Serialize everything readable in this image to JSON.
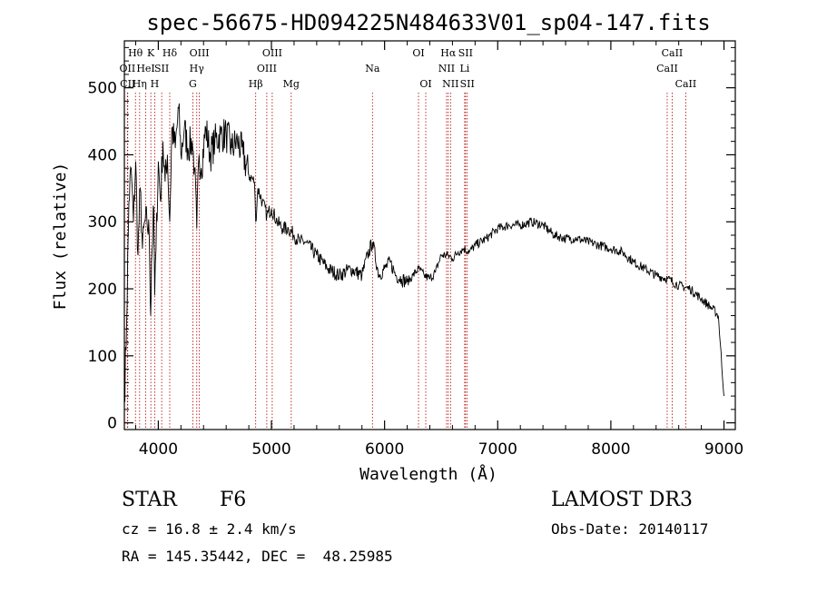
{
  "chart_data": {
    "type": "line",
    "title": "spec-56675-HD094225N484633V01_sp04-147.fits",
    "xlabel": "Wavelength (Å)",
    "ylabel": "Flux (relative)",
    "xlim": [
      3700,
      9100
    ],
    "ylim": [
      -10,
      570
    ],
    "xticks": [
      4000,
      5000,
      6000,
      7000,
      8000,
      9000
    ],
    "yticks": [
      0,
      100,
      200,
      300,
      400,
      500
    ],
    "grid": false,
    "series": [
      {
        "name": "flux",
        "x": [
          3700,
          3720,
          3740,
          3760,
          3780,
          3800,
          3820,
          3840,
          3860,
          3880,
          3900,
          3920,
          3933,
          3940,
          3960,
          3968,
          3980,
          4000,
          4020,
          4040,
          4060,
          4080,
          4101,
          4120,
          4150,
          4180,
          4200,
          4230,
          4260,
          4300,
          4320,
          4340,
          4360,
          4380,
          4420,
          4460,
          4500,
          4550,
          4600,
          4650,
          4700,
          4750,
          4800,
          4850,
          4861,
          4880,
          4920,
          4960,
          5000,
          5050,
          5100,
          5150,
          5200,
          5250,
          5300,
          5400,
          5500,
          5600,
          5700,
          5800,
          5850,
          5893,
          5950,
          6000,
          6050,
          6100,
          6150,
          6200,
          6250,
          6300,
          6350,
          6400,
          6450,
          6500,
          6563,
          6600,
          6650,
          6700,
          6750,
          6800,
          6900,
          7000,
          7100,
          7200,
          7300,
          7400,
          7500,
          7600,
          7700,
          7800,
          7900,
          8000,
          8100,
          8200,
          8300,
          8400,
          8500,
          8600,
          8700,
          8800,
          8900,
          8950,
          9000
        ],
        "values": [
          30,
          150,
          330,
          380,
          300,
          390,
          250,
          350,
          260,
          300,
          300,
          280,
          160,
          240,
          320,
          190,
          260,
          390,
          330,
          420,
          360,
          400,
          300,
          440,
          410,
          470,
          400,
          440,
          410,
          420,
          380,
          290,
          400,
          380,
          440,
          400,
          420,
          430,
          430,
          410,
          420,
          400,
          370,
          360,
          300,
          350,
          330,
          310,
          320,
          300,
          290,
          290,
          280,
          270,
          270,
          250,
          230,
          220,
          230,
          220,
          250,
          270,
          220,
          230,
          240,
          220,
          215,
          210,
          220,
          230,
          220,
          215,
          225,
          250,
          250,
          245,
          255,
          260,
          255,
          265,
          275,
          290,
          295,
          295,
          300,
          295,
          280,
          275,
          275,
          270,
          265,
          260,
          255,
          240,
          230,
          220,
          215,
          205,
          200,
          185,
          170,
          160,
          40
        ]
      }
    ],
    "lines": [
      {
        "label": "Hθ",
        "x": 3798,
        "row": 1
      },
      {
        "label": "OII",
        "x": 3727,
        "row": 2
      },
      {
        "label": "CII",
        "x": 3730,
        "row": 3
      },
      {
        "label": "Hη",
        "x": 3835,
        "row": 3
      },
      {
        "label": "HeI",
        "x": 3889,
        "row": 2
      },
      {
        "label": "K",
        "x": 3934,
        "row": 1
      },
      {
        "label": "H",
        "x": 3968,
        "row": 3
      },
      {
        "label": "SII",
        "x": 4030,
        "row": 2
      },
      {
        "label": "Hδ",
        "x": 4101,
        "row": 1
      },
      {
        "label": "OIII",
        "x": 4363,
        "row": 1
      },
      {
        "label": "Hγ",
        "x": 4340,
        "row": 2
      },
      {
        "label": "G",
        "x": 4305,
        "row": 3
      },
      {
        "label": "Hβ",
        "x": 4861,
        "row": 3
      },
      {
        "label": "OIII",
        "x": 5007,
        "row": 1
      },
      {
        "label": "OIII",
        "x": 4959,
        "row": 2
      },
      {
        "label": "Mg",
        "x": 5175,
        "row": 3
      },
      {
        "label": "Na",
        "x": 5893,
        "row": 2
      },
      {
        "label": "OI",
        "x": 6300,
        "row": 1
      },
      {
        "label": "OI",
        "x": 6364,
        "row": 3
      },
      {
        "label": "Hα",
        "x": 6563,
        "row": 1
      },
      {
        "label": "NII",
        "x": 6548,
        "row": 2
      },
      {
        "label": "NII",
        "x": 6583,
        "row": 3
      },
      {
        "label": "SII",
        "x": 6716,
        "row": 1
      },
      {
        "label": "Li",
        "x": 6708,
        "row": 2
      },
      {
        "label": "SII",
        "x": 6731,
        "row": 3
      },
      {
        "label": "CaII",
        "x": 8542,
        "row": 1
      },
      {
        "label": "CaII",
        "x": 8498,
        "row": 2
      },
      {
        "label": "CaII",
        "x": 8662,
        "row": 3
      }
    ]
  },
  "info": {
    "object_class": "STAR",
    "subclass": "F6",
    "survey": "LAMOST DR3",
    "cz": "cz = 16.8 ± 2.4 km/s",
    "obs_date": "Obs-Date: 20140117",
    "coords": "RA = 145.35442, DEC =  48.25985"
  }
}
